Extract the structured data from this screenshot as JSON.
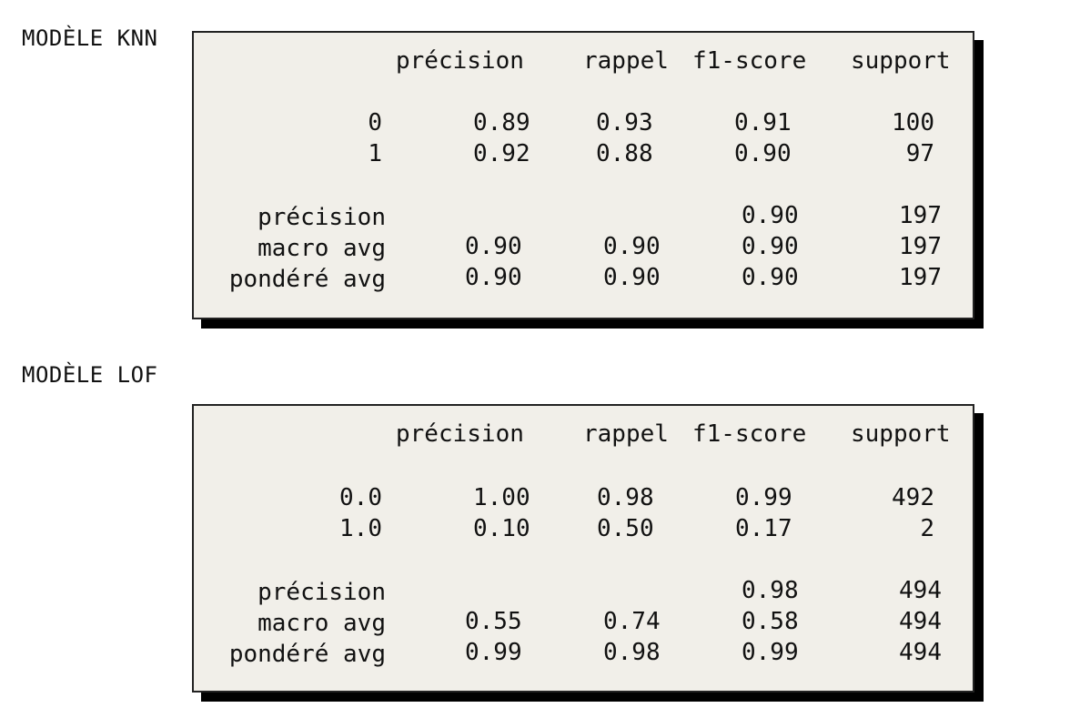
{
  "sections": [
    {
      "title": "MODÈLE KNN",
      "headers": [
        "précision",
        "rappel",
        "f1-score",
        "support"
      ],
      "classes": [
        {
          "label": "0",
          "precision": "0.89",
          "recall": "0.93",
          "f1": "0.91",
          "support": "100"
        },
        {
          "label": "1",
          "precision": "0.92",
          "recall": "0.88",
          "f1": "0.90",
          "support": "97"
        }
      ],
      "summary": [
        {
          "label": "précision",
          "precision": "",
          "recall": "",
          "f1": "0.90",
          "support": "197"
        },
        {
          "label": "macro avg",
          "precision": "0.90",
          "recall": "0.90",
          "f1": "0.90",
          "support": "197"
        },
        {
          "label": "pondéré avg",
          "precision": "0.90",
          "recall": "0.90",
          "f1": "0.90",
          "support": "197"
        }
      ]
    },
    {
      "title": "MODÈLE LOF",
      "headers": [
        "précision",
        "rappel",
        "f1-score",
        "support"
      ],
      "classes": [
        {
          "label": "0.0",
          "precision": "1.00",
          "recall": "0.98",
          "f1": "0.99",
          "support": "492"
        },
        {
          "label": "1.0",
          "precision": "0.10",
          "recall": "0.50",
          "f1": "0.17",
          "support": "2"
        }
      ],
      "summary": [
        {
          "label": "précision",
          "precision": "",
          "recall": "",
          "f1": "0.98",
          "support": "494"
        },
        {
          "label": "macro avg",
          "precision": "0.55",
          "recall": "0.74",
          "f1": "0.58",
          "support": "494"
        },
        {
          "label": "pondéré avg",
          "precision": "0.99",
          "recall": "0.98",
          "f1": "0.99",
          "support": "494"
        }
      ]
    }
  ]
}
